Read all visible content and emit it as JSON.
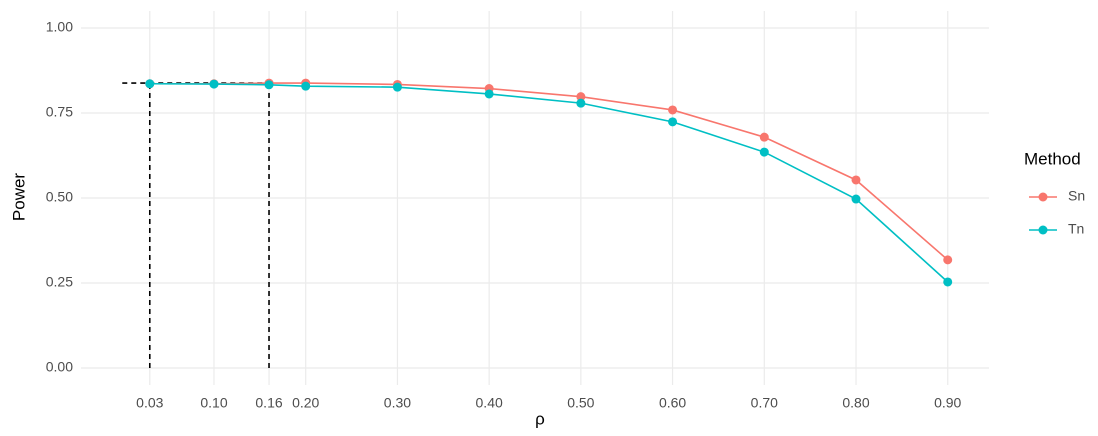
{
  "chart_data": {
    "type": "line",
    "x_label": "ρ",
    "y_label": "Power",
    "legend_title": "Method",
    "legend": "right",
    "grid": true,
    "xlim": [
      -0.045,
      0.945
    ],
    "ylim": [
      -0.05,
      1.05
    ],
    "xticks": [
      {
        "value": 0.03,
        "label": "0.03"
      },
      {
        "value": 0.1,
        "label": "0.10"
      },
      {
        "value": 0.16,
        "label": "0.16"
      },
      {
        "value": 0.2,
        "label": "0.20"
      },
      {
        "value": 0.3,
        "label": "0.30"
      },
      {
        "value": 0.4,
        "label": "0.40"
      },
      {
        "value": 0.5,
        "label": "0.50"
      },
      {
        "value": 0.6,
        "label": "0.60"
      },
      {
        "value": 0.7,
        "label": "0.70"
      },
      {
        "value": 0.8,
        "label": "0.80"
      },
      {
        "value": 0.9,
        "label": "0.90"
      }
    ],
    "yticks": [
      {
        "value": 0,
        "label": "0.00"
      },
      {
        "value": 0.25,
        "label": "0.25"
      },
      {
        "value": 0.5,
        "label": "0.50"
      },
      {
        "value": 0.75,
        "label": "0.75"
      },
      {
        "value": 1,
        "label": "1.00"
      }
    ],
    "x": [
      0.03,
      0.1,
      0.16,
      0.2,
      0.3,
      0.4,
      0.5,
      0.6,
      0.7,
      0.8,
      0.9
    ],
    "series": [
      {
        "name": "Sn",
        "color": "#F8766D",
        "values": [
          0.836,
          0.836,
          0.838,
          0.838,
          0.834,
          0.822,
          0.798,
          0.759,
          0.679,
          0.553,
          0.318
        ]
      },
      {
        "name": "Tn",
        "color": "#00BFC4",
        "values": [
          0.836,
          0.835,
          0.833,
          0.829,
          0.826,
          0.806,
          0.779,
          0.724,
          0.635,
          0.497,
          0.253
        ]
      }
    ],
    "reference_lines": [
      {
        "x": [
          0,
          0.16
        ],
        "y": [
          0.838,
          0.838
        ]
      },
      {
        "x": [
          0.03,
          0.03
        ],
        "y": [
          0,
          0.836
        ]
      },
      {
        "x": [
          0.16,
          0.16
        ],
        "y": [
          0,
          0.838
        ]
      }
    ]
  }
}
